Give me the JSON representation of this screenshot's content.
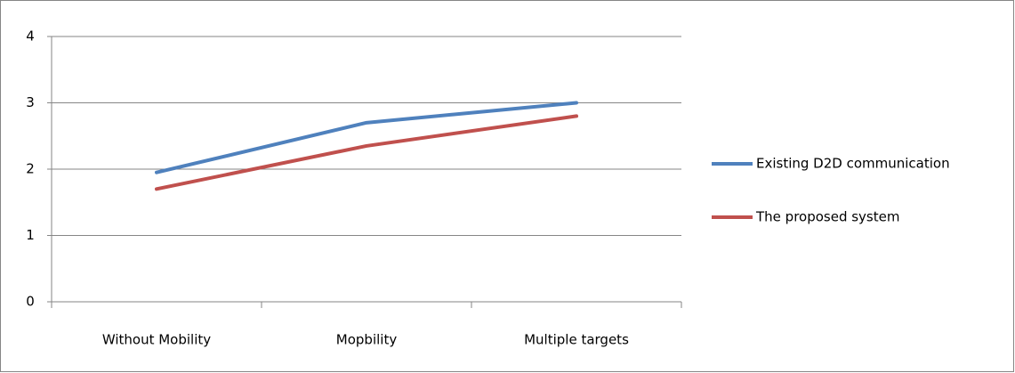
{
  "chart_data": {
    "type": "line",
    "categories": [
      "Without Mobility",
      "Mopbility",
      "Multiple targets"
    ],
    "series": [
      {
        "name": "Existing D2D communication",
        "color": "#4f81bd",
        "values": [
          1.95,
          2.7,
          3.0
        ]
      },
      {
        "name": "The proposed system",
        "color": "#c0504d",
        "values": [
          1.7,
          2.35,
          2.8
        ]
      }
    ],
    "ylim": [
      0,
      4
    ],
    "yticks": [
      0,
      1,
      2,
      3,
      4
    ],
    "grid": true,
    "legend": "right"
  }
}
